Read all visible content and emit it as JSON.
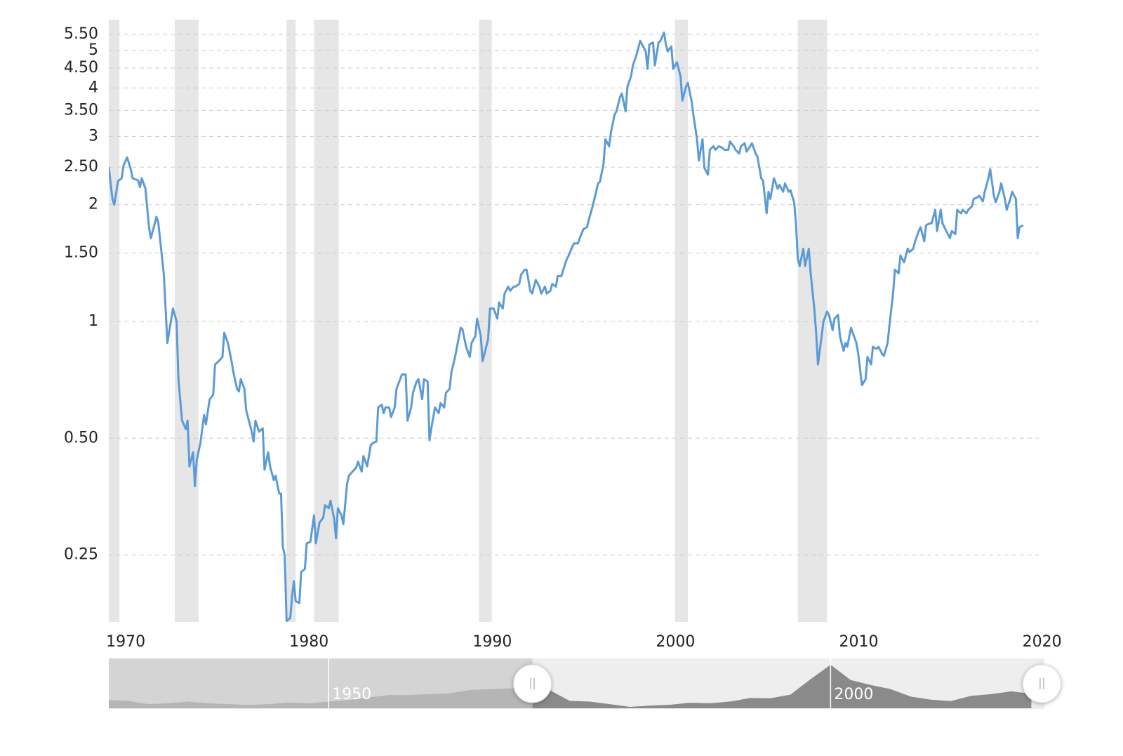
{
  "chart_data": {
    "type": "line",
    "log_y": true,
    "grid": true,
    "color": "#5b9bd5",
    "xlim": [
      1970.3,
      2021.05
    ],
    "xticks": [
      1970,
      1980,
      1990,
      2000,
      2010,
      2020
    ],
    "ylim": [
      0.168,
      6.0
    ],
    "yticks": [
      0.25,
      {
        "value": 0.5,
        "label": "0.50"
      },
      1,
      {
        "value": 1.5,
        "label": "1.50"
      },
      2,
      {
        "value": 2.5,
        "label": "2.50"
      },
      3,
      {
        "value": 3.5,
        "label": "3.50"
      },
      4,
      {
        "value": 4.5,
        "label": "4.50"
      },
      5,
      {
        "value": 5.5,
        "label": "5.50"
      }
    ],
    "recessions": [
      [
        1969.95,
        1970.88
      ],
      [
        1973.9,
        1975.2
      ],
      [
        1980.0,
        1980.5
      ],
      [
        1981.5,
        1982.85
      ],
      [
        1990.5,
        1991.2
      ],
      [
        2001.2,
        2001.9
      ],
      [
        2007.9,
        2009.5
      ]
    ],
    "recession_color": "#e6e6e6",
    "x": [
      1970.3,
      1970.5,
      1970.6,
      1970.8,
      1971.0,
      1971.1,
      1971.3,
      1971.5,
      1971.6,
      1971.9,
      1972.0,
      1972.1,
      1972.3,
      1972.5,
      1972.6,
      1972.9,
      1973.0,
      1973.3,
      1973.5,
      1973.8,
      1974.0,
      1974.1,
      1974.3,
      1974.5,
      1974.6,
      1974.7,
      1974.9,
      1975.0,
      1975.1,
      1975.3,
      1975.5,
      1975.6,
      1975.8,
      1976.0,
      1976.1,
      1976.3,
      1976.5,
      1976.6,
      1976.8,
      1977.0,
      1977.1,
      1977.3,
      1977.4,
      1977.5,
      1977.7,
      1977.8,
      1978.1,
      1978.2,
      1978.3,
      1978.5,
      1978.7,
      1978.8,
      1979.0,
      1979.1,
      1979.3,
      1979.4,
      1979.6,
      1979.7,
      1979.8,
      1979.9,
      1980.0,
      1980.2,
      1980.3,
      1980.4,
      1980.5,
      1980.7,
      1980.8,
      1981.0,
      1981.1,
      1981.3,
      1981.5,
      1981.6,
      1981.8,
      1982.0,
      1982.1,
      1982.3,
      1982.4,
      1982.6,
      1982.7,
      1982.8,
      1983.0,
      1983.1,
      1983.3,
      1983.4,
      1983.6,
      1983.8,
      1983.9,
      1984.1,
      1984.2,
      1984.4,
      1984.6,
      1984.7,
      1984.9,
      1985.0,
      1985.2,
      1985.3,
      1985.4,
      1985.6,
      1985.7,
      1985.9,
      1986.0,
      1986.2,
      1986.3,
      1986.5,
      1986.6,
      1986.8,
      1986.9,
      1987.1,
      1987.2,
      1987.4,
      1987.5,
      1987.7,
      1987.8,
      1987.9,
      1988.1,
      1988.3,
      1988.4,
      1988.6,
      1988.7,
      1988.9,
      1989.0,
      1989.2,
      1989.3,
      1989.5,
      1989.6,
      1989.8,
      1990.0,
      1990.1,
      1990.3,
      1990.4,
      1990.6,
      1990.7,
      1990.8,
      1991.0,
      1991.1,
      1991.3,
      1991.5,
      1991.6,
      1991.8,
      1991.9,
      1992.1,
      1992.2,
      1992.4,
      1992.5,
      1992.7,
      1992.8,
      1993.0,
      1993.1,
      1993.3,
      1993.4,
      1993.6,
      1993.8,
      1993.9,
      1994.1,
      1994.2,
      1994.4,
      1994.5,
      1994.7,
      1994.8,
      1995.0,
      1995.1,
      1995.3,
      1995.4,
      1995.6,
      1995.7,
      1995.9,
      1996.0,
      1996.2,
      1996.4,
      1996.5,
      1996.7,
      1996.8,
      1997.0,
      1997.1,
      1997.3,
      1997.4,
      1997.6,
      1997.7,
      1997.9,
      1998.0,
      1998.2,
      1998.3,
      1998.5,
      1998.6,
      1998.8,
      1998.9,
      1999.1,
      1999.3,
      1999.4,
      1999.6,
      1999.7,
      1999.8,
      2000.0,
      2000.1,
      2000.3,
      2000.4,
      2000.6,
      2000.7,
      2000.8,
      2001.0,
      2001.1,
      2001.3,
      2001.5,
      2001.6,
      2001.8,
      2001.9,
      2002.1,
      2002.2,
      2002.4,
      2002.5,
      2002.7,
      2002.8,
      2003.0,
      2003.1,
      2003.3,
      2003.4,
      2003.6,
      2003.8,
      2003.9,
      2004.1,
      2004.2,
      2004.4,
      2004.5,
      2004.7,
      2004.8,
      2005.0,
      2005.1,
      2005.3,
      2005.4,
      2005.6,
      2005.7,
      2005.9,
      2006.0,
      2006.2,
      2006.3,
      2006.4,
      2006.6,
      2006.8,
      2006.9,
      2007.1,
      2007.2,
      2007.4,
      2007.5,
      2007.7,
      2007.8,
      2007.9,
      2008.0,
      2008.2,
      2008.3,
      2008.5,
      2008.6,
      2008.8,
      2008.9,
      2009.0,
      2009.2,
      2009.3,
      2009.5,
      2009.6,
      2009.8,
      2009.9,
      2010.1,
      2010.2,
      2010.4,
      2010.5,
      2010.6,
      2010.8,
      2010.9,
      2011.1,
      2011.2,
      2011.4,
      2011.6,
      2011.7,
      2011.9,
      2012.0,
      2012.2,
      2012.3,
      2012.5,
      2012.6,
      2012.8,
      2012.9,
      2013.1,
      2013.2,
      2013.4,
      2013.5,
      2013.7,
      2013.9,
      2014.0,
      2014.2,
      2014.3,
      2014.5,
      2014.6,
      2014.8,
      2014.9,
      2015.1,
      2015.2,
      2015.4,
      2015.5,
      2015.7,
      2015.8,
      2016.0,
      2016.2,
      2016.3,
      2016.5,
      2016.6,
      2016.8,
      2016.9,
      2017.1,
      2017.2,
      2017.4,
      2017.5,
      2017.7,
      2017.8,
      2018.0,
      2018.1,
      2018.3,
      2018.4,
      2018.6,
      2018.7,
      2018.9,
      2019.0,
      2019.2,
      2019.3,
      2019.5,
      2019.6,
      2019.8,
      2019.9,
      2020.0,
      2020.2
    ],
    "values": [
      2.5,
      2.07,
      2.0,
      2.3,
      2.34,
      2.52,
      2.65,
      2.47,
      2.34,
      2.31,
      2.22,
      2.34,
      2.2,
      1.74,
      1.64,
      1.86,
      1.8,
      1.33,
      0.88,
      1.08,
      1.0,
      0.71,
      0.555,
      0.528,
      0.555,
      0.423,
      0.46,
      0.376,
      0.44,
      0.486,
      0.574,
      0.543,
      0.629,
      0.648,
      0.775,
      0.79,
      0.81,
      0.935,
      0.88,
      0.79,
      0.74,
      0.67,
      0.66,
      0.71,
      0.67,
      0.59,
      0.52,
      0.49,
      0.555,
      0.52,
      0.53,
      0.415,
      0.46,
      0.423,
      0.39,
      0.4,
      0.36,
      0.36,
      0.262,
      0.25,
      0.169,
      0.172,
      0.195,
      0.214,
      0.19,
      0.188,
      0.226,
      0.23,
      0.268,
      0.27,
      0.316,
      0.268,
      0.303,
      0.312,
      0.336,
      0.33,
      0.345,
      0.31,
      0.276,
      0.33,
      0.316,
      0.3,
      0.38,
      0.4,
      0.41,
      0.42,
      0.435,
      0.41,
      0.45,
      0.423,
      0.48,
      0.486,
      0.49,
      0.6,
      0.61,
      0.58,
      0.6,
      0.6,
      0.567,
      0.6,
      0.67,
      0.71,
      0.73,
      0.73,
      0.555,
      0.6,
      0.655,
      0.7,
      0.71,
      0.63,
      0.71,
      0.7,
      0.494,
      0.53,
      0.6,
      0.58,
      0.616,
      0.6,
      0.655,
      0.67,
      0.74,
      0.81,
      0.86,
      0.963,
      0.955,
      0.86,
      0.81,
      0.88,
      0.916,
      1.017,
      0.916,
      0.79,
      0.825,
      0.9,
      1.08,
      1.08,
      1.017,
      1.12,
      1.08,
      1.18,
      1.23,
      1.2,
      1.23,
      1.23,
      1.25,
      1.32,
      1.36,
      1.36,
      1.2,
      1.18,
      1.28,
      1.23,
      1.18,
      1.23,
      1.18,
      1.2,
      1.25,
      1.23,
      1.31,
      1.31,
      1.36,
      1.45,
      1.48,
      1.56,
      1.59,
      1.59,
      1.64,
      1.73,
      1.75,
      1.83,
      1.98,
      2.07,
      2.27,
      2.29,
      2.55,
      2.95,
      2.83,
      3.07,
      3.41,
      3.48,
      3.79,
      3.87,
      3.48,
      4.03,
      4.29,
      4.57,
      4.87,
      5.29,
      5.18,
      4.97,
      4.48,
      5.18,
      5.24,
      4.57,
      5.24,
      5.29,
      5.56,
      5.18,
      4.97,
      5.12,
      4.48,
      4.66,
      4.29,
      3.71,
      4.03,
      4.12,
      3.71,
      3.41,
      2.95,
      2.6,
      2.95,
      2.49,
      2.39,
      2.77,
      2.83,
      2.77,
      2.83,
      2.8,
      2.77,
      2.77,
      2.91,
      2.83,
      2.77,
      2.71,
      2.83,
      2.88,
      2.74,
      2.83,
      2.88,
      2.71,
      2.66,
      2.34,
      2.31,
      1.9,
      2.16,
      2.07,
      2.34,
      2.2,
      2.25,
      2.16,
      2.27,
      2.16,
      2.18,
      2.03,
      1.79,
      1.45,
      1.39,
      1.54,
      1.39,
      1.54,
      1.33,
      1.08,
      0.935,
      0.775,
      0.916,
      1.0,
      1.06,
      1.04,
      0.95,
      1.017,
      1.04,
      0.916,
      0.84,
      0.88,
      0.86,
      0.963,
      0.935,
      0.88,
      0.825,
      0.685,
      0.71,
      0.81,
      0.775,
      0.86,
      0.85,
      0.86,
      0.825,
      0.815,
      0.88,
      0.975,
      1.18,
      1.36,
      1.33,
      1.48,
      1.42,
      1.54,
      1.51,
      1.54,
      1.61,
      1.71,
      1.75,
      1.61,
      1.77,
      1.79,
      1.79,
      1.94,
      1.71,
      1.94,
      1.79,
      1.71,
      1.64,
      1.71,
      1.68,
      1.94,
      1.9,
      1.94,
      1.9,
      1.94,
      1.98,
      2.07,
      2.09,
      2.11,
      2.04,
      2.16,
      2.34,
      2.47,
      2.11,
      2.03,
      2.16,
      2.27,
      2.07,
      1.94,
      2.07,
      2.16,
      2.07,
      1.64,
      1.75,
      1.77
    ],
    "navigator": {
      "xlim": [
        1928.1,
        2021.3
      ],
      "xticks": [
        1950,
        2000
      ],
      "ylim": [
        0,
        6.0
      ],
      "x": [
        1928,
        1930,
        1932,
        1934,
        1936,
        1938,
        1940,
        1942,
        1944,
        1946,
        1948,
        1950,
        1952,
        1954,
        1956,
        1958,
        1960,
        1962,
        1964,
        1966,
        1968,
        1970,
        1972,
        1974,
        1976,
        1978,
        1980,
        1982,
        1984,
        1986,
        1988,
        1990,
        1992,
        1994,
        1996,
        1998,
        2000,
        2002,
        2004,
        2006,
        2008,
        2010,
        2012,
        2014,
        2016,
        2018,
        2020
      ],
      "values": [
        1.0,
        0.9,
        0.5,
        0.6,
        0.8,
        0.6,
        0.5,
        0.4,
        0.5,
        0.7,
        0.6,
        0.8,
        1.0,
        1.3,
        1.6,
        1.6,
        1.7,
        1.8,
        2.2,
        2.3,
        2.4,
        2.5,
        2.2,
        0.9,
        0.8,
        0.5,
        0.17,
        0.31,
        0.42,
        0.67,
        0.6,
        0.81,
        1.23,
        1.2,
        1.64,
        3.5,
        5.24,
        3.4,
        2.8,
        2.3,
        1.4,
        1.04,
        0.86,
        1.5,
        1.7,
        2.04,
        1.75
      ]
    }
  }
}
